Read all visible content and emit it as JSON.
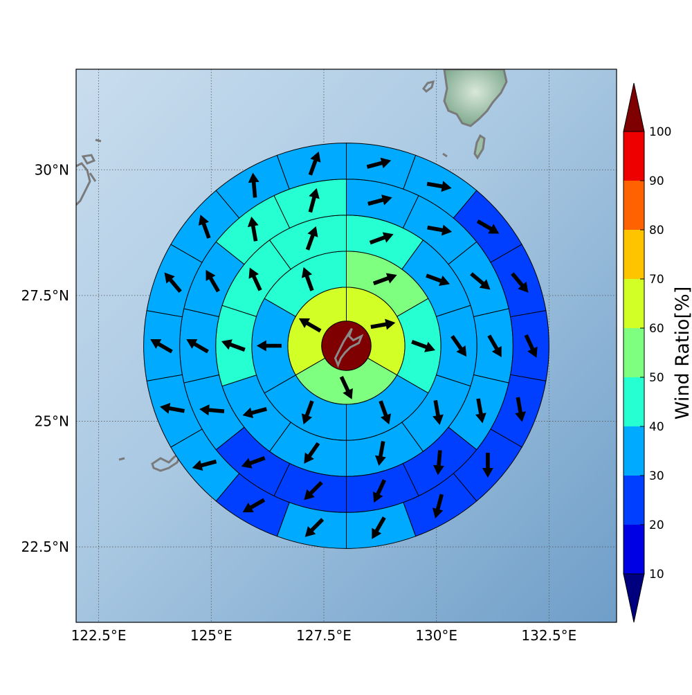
{
  "axes": {
    "x_ticks": [
      "122.5°E",
      "125°E",
      "127.5°E",
      "130°E",
      "132.5°E"
    ],
    "y_ticks": [
      "30°N",
      "27.5°N",
      "25°N",
      "22.5°N"
    ],
    "lon_range": [
      122,
      134
    ],
    "lat_range": [
      21,
      32
    ],
    "grid": true
  },
  "colorbar": {
    "label": "Wind Ratio[%]",
    "ticks": [
      "10",
      "20",
      "30",
      "40",
      "50",
      "60",
      "70",
      "80",
      "90",
      "100"
    ],
    "colors": [
      "#00007f",
      "#0000e5",
      "#003fff",
      "#00aaff",
      "#26ffd1",
      "#7fff7f",
      "#d1ff26",
      "#ffc400",
      "#ff6200",
      "#ef0000",
      "#7f0000"
    ],
    "extend": "both"
  },
  "chart_data": {
    "type": "polar-sector-map",
    "center_lon": 128.0,
    "center_lat": 26.5,
    "ring_unit": "degrees latitude",
    "ring_outer_edges": [
      0.55,
      1.3,
      2.1,
      2.9,
      3.7,
      4.5
    ],
    "sectors_per_ring": [
      1,
      3,
      6,
      10,
      14,
      18
    ],
    "wind_ratio_bins": [
      [
        100
      ],
      [
        60,
        55,
        65
      ],
      [
        50,
        45,
        35,
        35,
        35,
        45
      ],
      [
        45,
        35,
        35,
        35,
        35,
        35,
        35,
        45,
        45,
        45
      ],
      [
        35,
        35,
        35,
        35,
        35,
        25,
        25,
        25,
        25,
        35,
        35,
        35,
        45,
        45
      ],
      [
        35,
        35,
        25,
        25,
        25,
        25,
        25,
        25,
        35,
        35,
        25,
        35,
        35,
        35,
        35,
        35,
        35,
        35
      ]
    ],
    "wind_direction_deg": [
      [
        0
      ],
      [
        80,
        155,
        300
      ],
      [
        70,
        110,
        160,
        200,
        270,
        340
      ],
      [
        70,
        110,
        145,
        170,
        190,
        215,
        255,
        290,
        335,
        20
      ],
      [
        75,
        100,
        130,
        150,
        170,
        185,
        205,
        225,
        250,
        275,
        300,
        330,
        350,
        15
      ],
      [
        75,
        100,
        120,
        140,
        155,
        170,
        180,
        195,
        210,
        225,
        240,
        255,
        280,
        300,
        320,
        340,
        355,
        20
      ]
    ]
  }
}
